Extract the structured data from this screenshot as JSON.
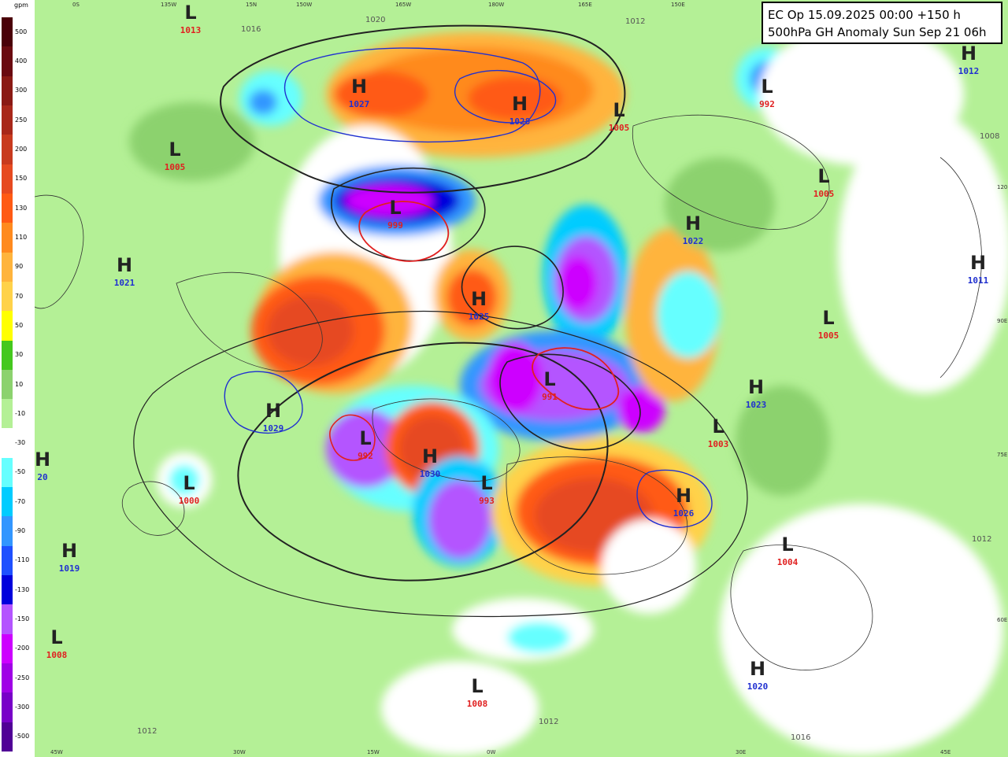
{
  "title": {
    "line1": "EC Op 15.09.2025 00:00 +150 h",
    "line2": "500hPa GH Anomaly Sun Sep 21 06h"
  },
  "legend": {
    "unit": "gpm",
    "bins": [
      {
        "label": "500",
        "color": "#4a0008"
      },
      {
        "label": "400",
        "color": "#6a0a10"
      },
      {
        "label": "300",
        "color": "#8a1a14"
      },
      {
        "label": "250",
        "color": "#a8281a"
      },
      {
        "label": "200",
        "color": "#c83a1e"
      },
      {
        "label": "150",
        "color": "#e64a20"
      },
      {
        "label": "130",
        "color": "#ff5a14"
      },
      {
        "label": "110",
        "color": "#ff8a1e"
      },
      {
        "label": "90",
        "color": "#ffb43c"
      },
      {
        "label": "70",
        "color": "#ffd24a"
      },
      {
        "label": "50",
        "color": "#ffff00"
      },
      {
        "label": "30",
        "color": "#44c81e"
      },
      {
        "label": "10",
        "color": "#8cd26e"
      },
      {
        "label": "-10",
        "color": "#b4f096"
      },
      {
        "label": "-30",
        "color": "#ffffff"
      },
      {
        "label": "-50",
        "color": "#66ffff"
      },
      {
        "label": "-70",
        "color": "#00ccff"
      },
      {
        "label": "-90",
        "color": "#3296ff"
      },
      {
        "label": "-110",
        "color": "#1e50ff"
      },
      {
        "label": "-130",
        "color": "#0000dc"
      },
      {
        "label": "-150",
        "color": "#b455ff"
      },
      {
        "label": "-200",
        "color": "#cd00ff"
      },
      {
        "label": "-250",
        "color": "#a000e6"
      },
      {
        "label": "-300",
        "color": "#7800c8"
      },
      {
        "label": "-500",
        "color": "#500096"
      }
    ]
  },
  "colors": {
    "high_value": "#2030d0",
    "low_value": "#e02020",
    "background_green": "#b4f096"
  },
  "pressure_centers": [
    {
      "type": "L",
      "value": "1013"
    },
    {
      "type": "H",
      "value": "1027"
    },
    {
      "type": "H",
      "value": "1028"
    },
    {
      "type": "L",
      "value": "1005"
    },
    {
      "type": "L",
      "value": "992"
    },
    {
      "type": "H",
      "value": "1012"
    },
    {
      "type": "L",
      "value": "1005"
    },
    {
      "type": "L",
      "value": "1005"
    },
    {
      "type": "L",
      "value": "999"
    },
    {
      "type": "H",
      "value": "1022"
    },
    {
      "type": "H",
      "value": "1021"
    },
    {
      "type": "H",
      "value": "1025"
    },
    {
      "type": "H",
      "value": "1011"
    },
    {
      "type": "L",
      "value": "1005"
    },
    {
      "type": "L",
      "value": "991"
    },
    {
      "type": "H",
      "value": "1023"
    },
    {
      "type": "H",
      "value": "1029"
    },
    {
      "type": "L",
      "value": "992"
    },
    {
      "type": "H",
      "value": "1030"
    },
    {
      "type": "L",
      "value": "1003"
    },
    {
      "type": "L",
      "value": "1000"
    },
    {
      "type": "L",
      "value": "993"
    },
    {
      "type": "H",
      "value": "1026"
    },
    {
      "type": "H",
      "value": "1019"
    },
    {
      "type": "L",
      "value": "1004"
    },
    {
      "type": "L",
      "value": "1008"
    },
    {
      "type": "L",
      "value": "1008"
    },
    {
      "type": "H",
      "value": "1020"
    },
    {
      "type": "H",
      "value": "20"
    }
  ],
  "isobar_labels": [
    "1020",
    "1016",
    "1012",
    "1008"
  ],
  "coord_labels": [
    "0S",
    "135W",
    "15N",
    "150W",
    "165W",
    "180W",
    "165E",
    "150E",
    "120E",
    "90E",
    "75E",
    "60E",
    "45E",
    "30E",
    "15W",
    "30W",
    "45W",
    "0W"
  ]
}
